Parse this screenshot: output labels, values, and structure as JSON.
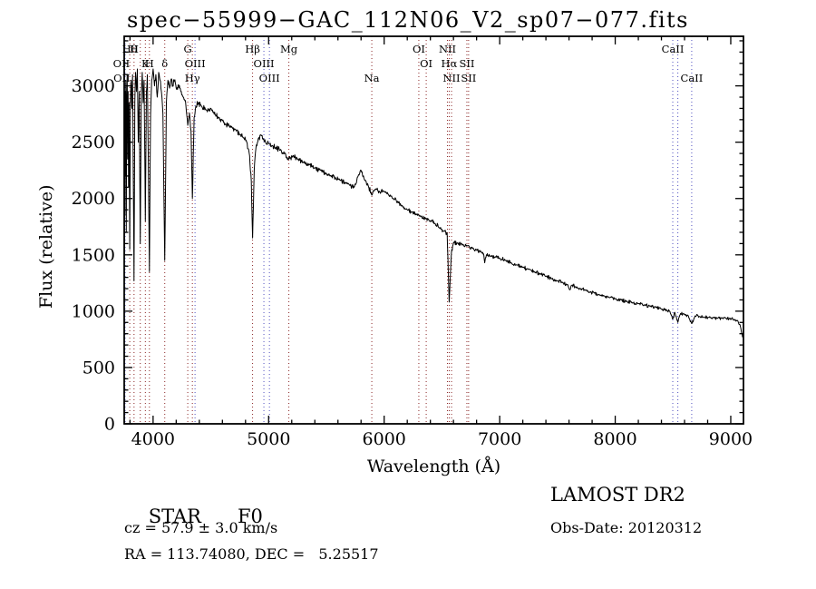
{
  "title": "spec−55999−GAC_112N06_V2_sp07−077.fits",
  "footer": {
    "class_label": "STAR",
    "subclass": "F0",
    "survey": "LAMOST DR2",
    "cz_line": "cz = 57.9 ± 3.0 km/s",
    "obs_date": "Obs-Date: 20120312",
    "ra_dec": "RA = 113.74080, DEC =   5.25517"
  },
  "chart_data": {
    "type": "line",
    "title": "spec−55999−GAC_112N06_V2_sp07−077.fits",
    "xlabel": "Wavelength (Å)",
    "ylabel": "Flux (relative)",
    "xlim": [
      3750,
      9110
    ],
    "ylim": [
      0,
      3440
    ],
    "xticks": [
      4000,
      5000,
      6000,
      7000,
      8000,
      9000
    ],
    "yticks": [
      0,
      500,
      1000,
      1500,
      2000,
      2500,
      3000
    ],
    "x_minor_step": 200,
    "y_minor_step": 100,
    "grid": false,
    "legend": "none",
    "line_color": "#000000",
    "noise": {
      "amplitude": 26,
      "step": 4
    },
    "spectral_line_colors": {
      "maroon": "#8b2525",
      "blue": "#5050c0"
    },
    "label_rows_y": [
      58,
      74,
      90
    ],
    "spectral_lines": [
      {
        "wavelength": 3726,
        "label": "OII",
        "row": 1,
        "color": "blue"
      },
      {
        "wavelength": 3729,
        "label": "OII",
        "row": 2,
        "color": "blue"
      },
      {
        "wavelength": 3798,
        "label": "Hθ",
        "row": 0,
        "color": "maroon"
      },
      {
        "wavelength": 3835,
        "label": "H",
        "row": 0,
        "color": "maroon"
      },
      {
        "wavelength": 3889,
        "label": "",
        "row": 0,
        "color": "maroon"
      },
      {
        "wavelength": 3933,
        "label": "K",
        "row": 1,
        "color": "maroon"
      },
      {
        "wavelength": 3968,
        "label": "H",
        "row": 1,
        "color": "maroon"
      },
      {
        "wavelength": 4101,
        "label": "δ",
        "row": 1,
        "color": "maroon"
      },
      {
        "wavelength": 4300,
        "label": "G",
        "row": 0,
        "color": "maroon"
      },
      {
        "wavelength": 4340,
        "label": "Hγ",
        "row": 2,
        "color": "maroon"
      },
      {
        "wavelength": 4363,
        "label": "OIII",
        "row": 1,
        "color": "blue"
      },
      {
        "wavelength": 4861,
        "label": "Hβ",
        "row": 0,
        "color": "maroon"
      },
      {
        "wavelength": 4959,
        "label": "OIII",
        "row": 1,
        "color": "blue"
      },
      {
        "wavelength": 5007,
        "label": "OIII",
        "row": 2,
        "color": "blue"
      },
      {
        "wavelength": 5175,
        "label": "Mg",
        "row": 0,
        "color": "maroon"
      },
      {
        "wavelength": 5893,
        "label": "Na",
        "row": 2,
        "color": "maroon"
      },
      {
        "wavelength": 6300,
        "label": "OI",
        "row": 0,
        "color": "maroon"
      },
      {
        "wavelength": 6364,
        "label": "OI",
        "row": 1,
        "color": "maroon"
      },
      {
        "wavelength": 6548,
        "label": "NII",
        "row": 0,
        "color": "maroon"
      },
      {
        "wavelength": 6563,
        "label": "Hα",
        "row": 1,
        "color": "maroon"
      },
      {
        "wavelength": 6583,
        "label": "NII",
        "row": 2,
        "color": "maroon"
      },
      {
        "wavelength": 6716,
        "label": "SII",
        "row": 1,
        "color": "maroon"
      },
      {
        "wavelength": 6731,
        "label": "SII",
        "row": 2,
        "color": "maroon"
      },
      {
        "wavelength": 8498,
        "label": "CaII",
        "row": 0,
        "color": "blue"
      },
      {
        "wavelength": 8542,
        "label": "",
        "row": 0,
        "color": "blue"
      },
      {
        "wavelength": 8662,
        "label": "CaII",
        "row": 2,
        "color": "blue"
      }
    ],
    "series": [
      {
        "name": "flux",
        "points": [
          [
            3752,
            1500
          ],
          [
            3754,
            2650
          ],
          [
            3756,
            1850
          ],
          [
            3758,
            2950
          ],
          [
            3761,
            2200
          ],
          [
            3764,
            3050
          ],
          [
            3768,
            1700
          ],
          [
            3772,
            2900
          ],
          [
            3776,
            3100
          ],
          [
            3780,
            2350
          ],
          [
            3784,
            2950
          ],
          [
            3788,
            2100
          ],
          [
            3792,
            2850
          ],
          [
            3798,
            1550
          ],
          [
            3804,
            2900
          ],
          [
            3810,
            3050
          ],
          [
            3816,
            2800
          ],
          [
            3822,
            3100
          ],
          [
            3828,
            2300
          ],
          [
            3835,
            1270
          ],
          [
            3842,
            2850
          ],
          [
            3848,
            3120
          ],
          [
            3856,
            2950
          ],
          [
            3864,
            3150
          ],
          [
            3872,
            2500
          ],
          [
            3880,
            2950
          ],
          [
            3889,
            1600
          ],
          [
            3898,
            2950
          ],
          [
            3906,
            3120
          ],
          [
            3914,
            2850
          ],
          [
            3922,
            3050
          ],
          [
            3933,
            1800
          ],
          [
            3942,
            2950
          ],
          [
            3950,
            3100
          ],
          [
            3958,
            2400
          ],
          [
            3968,
            1350
          ],
          [
            3978,
            2750
          ],
          [
            3988,
            3050
          ],
          [
            4000,
            3150
          ],
          [
            4012,
            3000
          ],
          [
            4024,
            3100
          ],
          [
            4036,
            2900
          ],
          [
            4048,
            3120
          ],
          [
            4060,
            3050
          ],
          [
            4072,
            2950
          ],
          [
            4085,
            2750
          ],
          [
            4101,
            1450
          ],
          [
            4115,
            2850
          ],
          [
            4128,
            3050
          ],
          [
            4142,
            2980
          ],
          [
            4156,
            3060
          ],
          [
            4170,
            3000
          ],
          [
            4185,
            3050
          ],
          [
            4200,
            2980
          ],
          [
            4220,
            3010
          ],
          [
            4240,
            2950
          ],
          [
            4260,
            2900
          ],
          [
            4280,
            2870
          ],
          [
            4300,
            2650
          ],
          [
            4315,
            2760
          ],
          [
            4328,
            2600
          ],
          [
            4340,
            2000
          ],
          [
            4355,
            2720
          ],
          [
            4370,
            2820
          ],
          [
            4390,
            2850
          ],
          [
            4420,
            2820
          ],
          [
            4450,
            2800
          ],
          [
            4480,
            2790
          ],
          [
            4510,
            2780
          ],
          [
            4540,
            2740
          ],
          [
            4570,
            2720
          ],
          [
            4600,
            2690
          ],
          [
            4630,
            2660
          ],
          [
            4660,
            2640
          ],
          [
            4690,
            2620
          ],
          [
            4720,
            2600
          ],
          [
            4750,
            2570
          ],
          [
            4780,
            2540
          ],
          [
            4810,
            2500
          ],
          [
            4835,
            2380
          ],
          [
            4850,
            2150
          ],
          [
            4861,
            1650
          ],
          [
            4875,
            2250
          ],
          [
            4890,
            2450
          ],
          [
            4910,
            2530
          ],
          [
            4940,
            2560
          ],
          [
            4970,
            2510
          ],
          [
            5000,
            2490
          ],
          [
            5030,
            2470
          ],
          [
            5060,
            2450
          ],
          [
            5100,
            2430
          ],
          [
            5140,
            2400
          ],
          [
            5175,
            2350
          ],
          [
            5210,
            2380
          ],
          [
            5250,
            2350
          ],
          [
            5300,
            2320
          ],
          [
            5350,
            2300
          ],
          [
            5400,
            2270
          ],
          [
            5450,
            2250
          ],
          [
            5500,
            2220
          ],
          [
            5540,
            2200
          ],
          [
            5580,
            2180
          ],
          [
            5620,
            2160
          ],
          [
            5660,
            2140
          ],
          [
            5700,
            2120
          ],
          [
            5740,
            2100
          ],
          [
            5775,
            2200
          ],
          [
            5800,
            2250
          ],
          [
            5825,
            2180
          ],
          [
            5860,
            2120
          ],
          [
            5893,
            2030
          ],
          [
            5920,
            2080
          ],
          [
            5960,
            2060
          ],
          [
            6000,
            2060
          ],
          [
            6040,
            2030
          ],
          [
            6080,
            2000
          ],
          [
            6120,
            1970
          ],
          [
            6160,
            1930
          ],
          [
            6200,
            1900
          ],
          [
            6240,
            1880
          ],
          [
            6280,
            1860
          ],
          [
            6320,
            1840
          ],
          [
            6360,
            1820
          ],
          [
            6400,
            1800
          ],
          [
            6440,
            1780
          ],
          [
            6480,
            1740
          ],
          [
            6520,
            1710
          ],
          [
            6545,
            1690
          ],
          [
            6563,
            1080
          ],
          [
            6582,
            1520
          ],
          [
            6600,
            1610
          ],
          [
            6640,
            1600
          ],
          [
            6680,
            1590
          ],
          [
            6720,
            1580
          ],
          [
            6760,
            1560
          ],
          [
            6800,
            1545
          ],
          [
            6830,
            1530
          ],
          [
            6860,
            1510
          ],
          [
            6870,
            1430
          ],
          [
            6885,
            1500
          ],
          [
            6920,
            1490
          ],
          [
            6960,
            1480
          ],
          [
            7000,
            1470
          ],
          [
            7050,
            1450
          ],
          [
            7100,
            1430
          ],
          [
            7150,
            1410
          ],
          [
            7200,
            1390
          ],
          [
            7250,
            1370
          ],
          [
            7300,
            1350
          ],
          [
            7350,
            1330
          ],
          [
            7400,
            1310
          ],
          [
            7450,
            1290
          ],
          [
            7500,
            1270
          ],
          [
            7540,
            1255
          ],
          [
            7590,
            1235
          ],
          [
            7605,
            1190
          ],
          [
            7625,
            1230
          ],
          [
            7660,
            1215
          ],
          [
            7700,
            1200
          ],
          [
            7740,
            1185
          ],
          [
            7780,
            1170
          ],
          [
            7820,
            1160
          ],
          [
            7860,
            1145
          ],
          [
            7900,
            1135
          ],
          [
            7950,
            1120
          ],
          [
            8000,
            1110
          ],
          [
            8050,
            1100
          ],
          [
            8100,
            1085
          ],
          [
            8150,
            1075
          ],
          [
            8200,
            1065
          ],
          [
            8250,
            1055
          ],
          [
            8300,
            1045
          ],
          [
            8350,
            1035
          ],
          [
            8400,
            1020
          ],
          [
            8450,
            1005
          ],
          [
            8470,
            1000
          ],
          [
            8498,
            930
          ],
          [
            8515,
            990
          ],
          [
            8542,
            900
          ],
          [
            8565,
            980
          ],
          [
            8600,
            970
          ],
          [
            8630,
            962
          ],
          [
            8662,
            890
          ],
          [
            8690,
            958
          ],
          [
            8730,
            952
          ],
          [
            8770,
            948
          ],
          [
            8810,
            945
          ],
          [
            8850,
            942
          ],
          [
            8890,
            940
          ],
          [
            8930,
            938
          ],
          [
            8960,
            936
          ],
          [
            9000,
            930
          ],
          [
            9030,
            925
          ],
          [
            9060,
            915
          ],
          [
            9080,
            880
          ],
          [
            9095,
            800
          ],
          [
            9105,
            770
          ]
        ]
      }
    ]
  }
}
